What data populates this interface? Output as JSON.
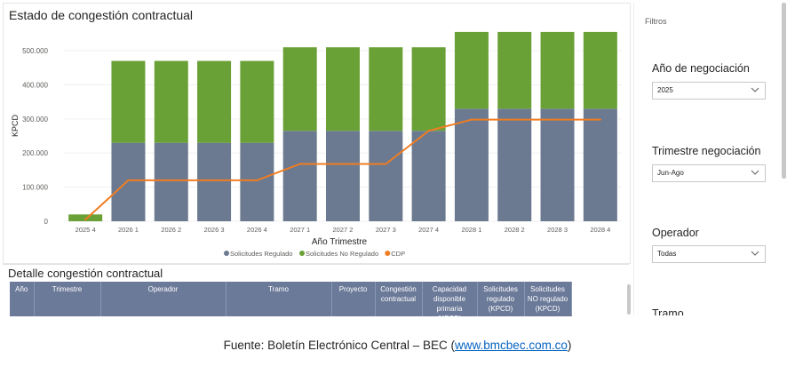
{
  "chart": {
    "title": "Estado de congestión contractual"
  },
  "chart_data": {
    "type": "bar",
    "stacked": true,
    "title": "Estado de congestión contractual",
    "xlabel": "Año Trimestre",
    "ylabel": "KPCD",
    "ylim": [
      0,
      560000
    ],
    "yticks": [
      0,
      100000,
      200000,
      300000,
      400000,
      500000
    ],
    "ytick_labels": [
      "0",
      "100.000",
      "200.000",
      "300.000",
      "400.000",
      "500.000"
    ],
    "categories": [
      "2025 4",
      "2026 1",
      "2026 2",
      "2026 3",
      "2026 4",
      "2027 1",
      "2027 2",
      "2027 3",
      "2027 4",
      "2028 1",
      "2028 2",
      "2028 3",
      "2028 4"
    ],
    "series": [
      {
        "name": "Solicitudes Regulado",
        "kind": "bar",
        "color": "#6b7a90",
        "values": [
          0,
          230000,
          230000,
          230000,
          230000,
          265000,
          265000,
          265000,
          265000,
          330000,
          330000,
          330000,
          330000
        ]
      },
      {
        "name": "Solicitudes No Regulado",
        "kind": "bar",
        "color": "#6aa136",
        "values": [
          20000,
          240000,
          240000,
          240000,
          240000,
          245000,
          245000,
          245000,
          245000,
          225000,
          225000,
          225000,
          225000
        ]
      },
      {
        "name": "CDP",
        "kind": "line",
        "color": "#f07d23",
        "values": [
          5000,
          120000,
          120000,
          120000,
          120000,
          168000,
          168000,
          168000,
          265000,
          298000,
          298000,
          298000,
          298000
        ]
      }
    ],
    "legend_position": "bottom"
  },
  "table": {
    "title": "Detalle congestión contractual",
    "headers": [
      [
        "Año"
      ],
      [
        "Trimestre"
      ],
      [
        "Operador"
      ],
      [
        "Tramo"
      ],
      [
        "Proyecto"
      ],
      [
        "Congestión",
        "contractual"
      ],
      [
        "Capacidad",
        "disponible",
        "primaria (KPCD)"
      ],
      [
        "Solicitudes",
        "regulado",
        "(KPCD)"
      ],
      [
        "Solicitudes",
        "NO regulado",
        "(KPCD)"
      ]
    ]
  },
  "filters": {
    "label": "Filtros",
    "items": [
      {
        "title": "Año de negociación",
        "value": "2025"
      },
      {
        "title": "Trimestre negociación",
        "value": "Jun-Ago"
      },
      {
        "title": "Operador",
        "value": "Todas"
      },
      {
        "title": "Tramo",
        "value": ""
      }
    ]
  },
  "source": {
    "prefix": "Fuente: Boletín Electrónico Central – BEC (",
    "link_text": "www.bmcbec.com.co",
    "suffix": ")"
  }
}
